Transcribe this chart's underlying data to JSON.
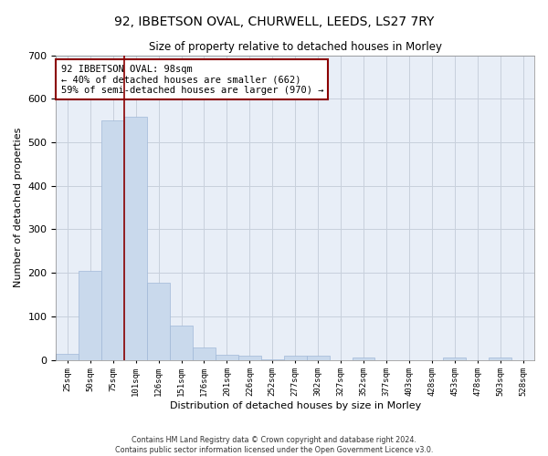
{
  "title_line1": "92, IBBETSON OVAL, CHURWELL, LEEDS, LS27 7RY",
  "title_line2": "Size of property relative to detached houses in Morley",
  "xlabel": "Distribution of detached houses by size in Morley",
  "ylabel": "Number of detached properties",
  "bar_color": "#c9d9ec",
  "bar_edge_color": "#a0b8d8",
  "grid_color": "#c8d0dc",
  "background_color": "#e8eef7",
  "footnote1": "Contains HM Land Registry data © Crown copyright and database right 2024.",
  "footnote2": "Contains public sector information licensed under the Open Government Licence v3.0.",
  "annotation_line1": "92 IBBETSON OVAL: 98sqm",
  "annotation_line2": "← 40% of detached houses are smaller (662)",
  "annotation_line3": "59% of semi-detached houses are larger (970) →",
  "categories": [
    "25sqm",
    "50sqm",
    "75sqm",
    "101sqm",
    "126sqm",
    "151sqm",
    "176sqm",
    "201sqm",
    "226sqm",
    "252sqm",
    "277sqm",
    "302sqm",
    "327sqm",
    "352sqm",
    "377sqm",
    "403sqm",
    "428sqm",
    "453sqm",
    "478sqm",
    "503sqm",
    "528sqm"
  ],
  "values": [
    13,
    205,
    550,
    558,
    178,
    78,
    29,
    12,
    10,
    2,
    9,
    9,
    0,
    5,
    0,
    0,
    0,
    5,
    0,
    6,
    0
  ],
  "ylim": [
    0,
    700
  ],
  "yticks": [
    0,
    100,
    200,
    300,
    400,
    500,
    600,
    700
  ],
  "vline_pos": 2.5
}
